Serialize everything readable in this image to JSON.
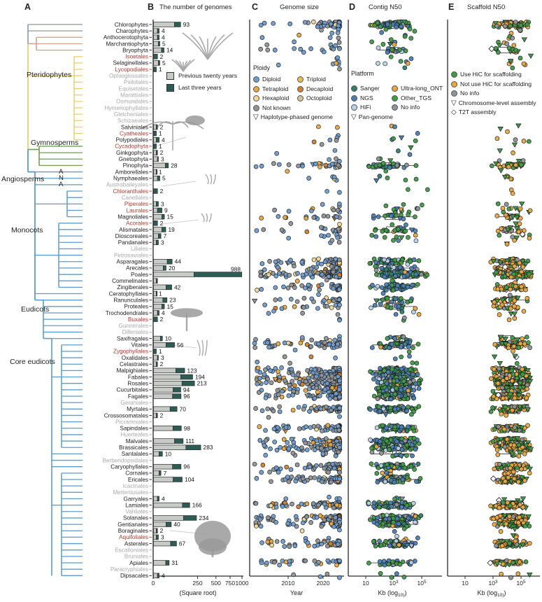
{
  "figure": {
    "panels": [
      {
        "letter": "A",
        "title": ""
      },
      {
        "letter": "B",
        "title": "The number of genomes"
      },
      {
        "letter": "C",
        "title": "Genome size"
      },
      {
        "letter": "D",
        "title": "Contig N50"
      },
      {
        "letter": "E",
        "title": "Scaffold N50"
      }
    ]
  },
  "clades": {
    "labels": [
      "Pteridophytes",
      "Gymnosperms",
      "Angiosperms",
      "Monocots",
      "Eudicots",
      "Core eudicots"
    ],
    "ana": [
      "A",
      "N",
      "A"
    ]
  },
  "axes": {
    "b": {
      "ticks": [
        0,
        250,
        500,
        750,
        1000
      ],
      "caption": "(Square root)",
      "scale": "sqrt",
      "max": 1000
    },
    "c": {
      "ticks": [
        2010,
        2020
      ],
      "caption": "Year",
      "range": [
        2000,
        2025
      ]
    },
    "d": {
      "ticks": [
        "10",
        "10^3",
        "10^5"
      ],
      "caption": "Kb (log_10)",
      "log_range": [
        0,
        6
      ]
    },
    "e": {
      "ticks": [
        "10",
        "10^3",
        "10^5"
      ],
      "caption": "Kb (log_10)",
      "log_range": [
        0,
        6
      ]
    }
  },
  "legends": {
    "b": [
      {
        "label": "Previous twenty years",
        "color": "#c6cbc6"
      },
      {
        "label": "Last three years",
        "color": "#2d5c55"
      }
    ],
    "c": {
      "title": "Ploidy",
      "col1": [
        [
          "Diploid",
          "#6d9dce"
        ],
        [
          "Tetraploid",
          "#e9a83f"
        ],
        [
          "Hexaploid",
          "#f2d794"
        ]
      ],
      "col2": [
        [
          "Triploid",
          "#ecbb4e"
        ],
        [
          "Decaploid",
          "#d0802e"
        ],
        [
          "Octoploid",
          "#d8c28e"
        ]
      ],
      "extra": [
        [
          "Not known",
          "#8f9499"
        ]
      ],
      "shapes": [
        [
          "▽",
          "Haplotype-phased genome"
        ]
      ]
    },
    "d": {
      "title": "Platform",
      "col1": [
        [
          "Sanger",
          "#2f7d6d"
        ],
        [
          "NGS",
          "#4a7fb5"
        ],
        [
          "HiFi",
          "#b9d3ea"
        ]
      ],
      "col2": [
        [
          "Ultra-long_ONT",
          "#e9a83f"
        ],
        [
          "Other_TGS",
          "#3f9b45"
        ],
        [
          "No info",
          "#8f9499"
        ]
      ],
      "shapes": [
        [
          "▽",
          "Pan-genome"
        ]
      ]
    },
    "e": {
      "items": [
        [
          "Use HiC for scaffolding",
          "#3f9b45"
        ],
        [
          "Not use HiC for scaffolding",
          "#e9a83f"
        ],
        [
          "No info",
          "#8f9499"
        ]
      ],
      "shapes": [
        [
          "▽",
          "Chromosome-level assembly"
        ],
        [
          "◇",
          "T2T assembly"
        ]
      ]
    }
  },
  "colors": {
    "bar_prev": "#c6cbc6",
    "bar_recent": "#2d5c55",
    "taxon_black": "#1b1b1b",
    "taxon_red": "#c0362c",
    "taxon_gray": "#a9a9a9",
    "tree_basal": "#8a98a8",
    "tree_bryo": "#d8a28c",
    "tree_pterido": "#eccf6e",
    "tree_gymno": "#6da14e",
    "tree_angio": "#5b9bd1",
    "axis": "#2a2a2a",
    "silhouette": "#9a9a9a",
    "box_stroke": "#4a4a4a"
  },
  "chart_data": {
    "type": "composite",
    "description": "Plant order phylogeny (A) with stacked bar counts of sequenced genomes (B, square-root x scale), and per-order jittered dot strips for Genome size by Year (C), Contig N50 (D) and Scaffold N50 (E) on log10 Kb scales with boxplots.",
    "bar": {
      "series": [
        "Previous twenty years",
        "Last three years"
      ],
      "scale": "sqrt",
      "xmax": 1000
    },
    "taxa": [
      [
        "Chlorophytes",
        "k",
        93,
        37
      ],
      [
        "Charophytes",
        "k",
        4,
        2
      ],
      [
        "Anthocerotophyta",
        "k",
        4,
        2
      ],
      [
        "Marchantiophyta",
        "k",
        5,
        2
      ],
      [
        "Bryophyta",
        "k",
        14,
        6
      ],
      [
        "Isoetales",
        "r",
        2,
        2
      ],
      [
        "Selaginellales",
        "k",
        5,
        2
      ],
      [
        "Lycopodiales",
        "r",
        1,
        1
      ],
      [
        "Ophioglossales",
        "g",
        0,
        0
      ],
      [
        "Psilotales",
        "g",
        0,
        0
      ],
      [
        "Equisetales",
        "g",
        0,
        0
      ],
      [
        "Marattiales",
        "g",
        0,
        0
      ],
      [
        "Osmundales",
        "g",
        0,
        0
      ],
      [
        "Hymenophyllales",
        "g",
        0,
        0
      ],
      [
        "Gleicheniales",
        "g",
        0,
        0
      ],
      [
        "Schizaeales",
        "g",
        0,
        0
      ],
      [
        "Salviniales",
        "k",
        2,
        1
      ],
      [
        "Cyatheales",
        "r",
        1,
        1
      ],
      [
        "Polypodiales",
        "k",
        4,
        3
      ],
      [
        "Cycadophyta",
        "r",
        1,
        1
      ],
      [
        "Ginkgophyta",
        "k",
        2,
        1
      ],
      [
        "Gnetophyta",
        "k",
        3,
        1
      ],
      [
        "Pinophyta",
        "k",
        28,
        10
      ],
      [
        "Amborellales",
        "k",
        1,
        0
      ],
      [
        "Nymphaeales",
        "k",
        5,
        3
      ],
      [
        "Austrobaileyales",
        "g",
        0,
        0
      ],
      [
        "Chloranthales",
        "r",
        2,
        2
      ],
      [
        "Canellales",
        "g",
        0,
        0
      ],
      [
        "Piperales",
        "r",
        3,
        2
      ],
      [
        "Laurales",
        "r",
        9,
        7
      ],
      [
        "Magnoliales",
        "k",
        15,
        6
      ],
      [
        "Acorales",
        "r",
        2,
        2
      ],
      [
        "Alismatales",
        "k",
        19,
        10
      ],
      [
        "Dioscoreales",
        "k",
        7,
        4
      ],
      [
        "Pandanales",
        "k",
        3,
        2
      ],
      [
        "Liliales",
        "g",
        0,
        0
      ],
      [
        "Petrosaviales",
        "g",
        0,
        0
      ],
      [
        "Asparagales",
        "k",
        44,
        20
      ],
      [
        "Arecales",
        "k",
        20,
        8
      ],
      [
        "Poales",
        "k",
        988,
        780
      ],
      [
        "Commelinales",
        "k",
        2,
        1,
        ""
      ],
      [
        "Zingiberales",
        "k",
        42,
        22
      ],
      [
        "Ceratophyllales",
        "k",
        1,
        0
      ],
      [
        "Ranunculales",
        "k",
        23,
        12
      ],
      [
        "Proteales",
        "k",
        15,
        6
      ],
      [
        "Trochodendrales",
        "k",
        4,
        2
      ],
      [
        "Buxales",
        "r",
        2,
        2
      ],
      [
        "Gunnerales",
        "g",
        0,
        0
      ],
      [
        "Dilleniales",
        "g",
        0,
        0
      ],
      [
        "Saxifragales",
        "k",
        10,
        4
      ],
      [
        "Vitales",
        "k",
        56,
        36
      ],
      [
        "Zygophyllales",
        "r",
        1,
        1
      ],
      [
        "Oxalidales",
        "k",
        3,
        1
      ],
      [
        "Celastrales",
        "k",
        2,
        1
      ],
      [
        "Malpighiales",
        "k",
        123,
        60
      ],
      [
        "Fabales",
        "k",
        194,
        100
      ],
      [
        "Rosales",
        "k",
        213,
        110
      ],
      [
        "Cucurbitales",
        "k",
        94,
        45
      ],
      [
        "Fagales",
        "k",
        96,
        50
      ],
      [
        "Geraniales",
        "g",
        0,
        0
      ],
      [
        "Myrtales",
        "k",
        70,
        35
      ],
      [
        "Crossosomatales",
        "k",
        2,
        1
      ],
      [
        "Picramniales",
        "g",
        0,
        0
      ],
      [
        "Sapindales",
        "k",
        98,
        50
      ],
      [
        "Huerteales",
        "g",
        0,
        0
      ],
      [
        "Malvales",
        "k",
        111,
        55
      ],
      [
        "Brassicales",
        "k",
        283,
        150
      ],
      [
        "Santalales",
        "k",
        10,
        6
      ],
      [
        "Berberidopsidales",
        "g",
        0,
        0
      ],
      [
        "Caryophyllales",
        "k",
        96,
        50
      ],
      [
        "Cornales",
        "k",
        7,
        3
      ],
      [
        "Ericales",
        "k",
        104,
        55
      ],
      [
        "Icacinales",
        "g",
        0,
        0
      ],
      [
        "Metteniusales",
        "g",
        0,
        0
      ],
      [
        "Garryales",
        "k",
        4,
        2
      ],
      [
        "Lamiales",
        "k",
        166,
        60
      ],
      [
        "Vahliales",
        "g",
        0,
        0
      ],
      [
        "Solanales",
        "k",
        234,
        120
      ],
      [
        "Gentianales",
        "k",
        40,
        20
      ],
      [
        "Boraginales",
        "k",
        2,
        1
      ],
      [
        "Aquifoliales",
        "r",
        3,
        2
      ],
      [
        "Asterales",
        "k",
        67,
        30
      ],
      [
        "Escalloniales",
        "g",
        0,
        0
      ],
      [
        "Bruniales",
        "g",
        0,
        0
      ],
      [
        "Apiales",
        "k",
        31,
        12
      ],
      [
        "Paracryphiales",
        "g",
        0,
        0
      ],
      [
        "Dipsacales",
        "k",
        4,
        2
      ]
    ],
    "scatter": {
      "c": {
        "palette": [
          [
            "#6d9dce",
            48
          ],
          [
            "#8f9499",
            34
          ],
          [
            "#e9a83f",
            10
          ],
          [
            "#f2d794",
            5
          ],
          [
            "#d0802e",
            3
          ]
        ],
        "triangle_p": 0.02
      },
      "d": {
        "palette": [
          [
            "#3f9b45",
            40
          ],
          [
            "#4a7fb5",
            33
          ],
          [
            "#2f7d6d",
            9
          ],
          [
            "#b9d3ea",
            8
          ],
          [
            "#e9a83f",
            4
          ],
          [
            "#8f9499",
            6
          ]
        ],
        "triangle_p": 0.04
      },
      "e": {
        "palette": [
          [
            "#e9a83f",
            50
          ],
          [
            "#3f9b45",
            40
          ],
          [
            "#8f9499",
            10
          ]
        ],
        "green_triangle_p": 0.6,
        "diamond_p": 0.025
      }
    }
  }
}
